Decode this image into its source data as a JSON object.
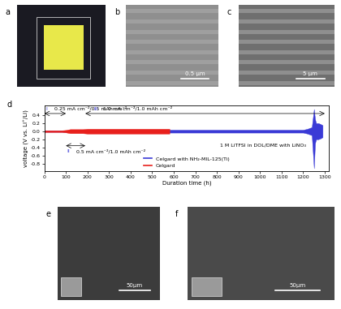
{
  "panels": [
    {
      "label": "a"
    },
    {
      "label": "b",
      "scale_bar": "0.5 μm"
    },
    {
      "label": "c",
      "scale_bar": "5 μm"
    },
    {
      "label": "e",
      "scale_bar": "50μm"
    },
    {
      "label": "f",
      "scale_bar": "50μm"
    }
  ],
  "chart_data": {
    "label": "d",
    "type": "line",
    "x_label": "Duration time (h)",
    "y_label": "voltage (V vs. Li⁺/Li)",
    "xlim": [
      0,
      1320
    ],
    "xticks": [
      0,
      100,
      200,
      300,
      400,
      500,
      600,
      700,
      800,
      900,
      1000,
      1100,
      1200,
      1300
    ],
    "ylim": [
      -1.0,
      0.65
    ],
    "yticks": [
      -0.8,
      -0.6,
      -0.4,
      -0.2,
      0.0,
      0.2,
      0.4
    ],
    "legend": "lower center",
    "note": "1 M LiTFSI in DOL/DME with LiNO₃",
    "annotations": [
      {
        "label": "I",
        "text": "0.25 mA cm⁻²/0.5 mAh cm⁻²",
        "start": 0,
        "end": 100
      },
      {
        "label": "II",
        "text": "0.5 mA cm⁻²/1.0 mAh cm⁻²",
        "start": 100,
        "end": 190
      },
      {
        "label": "III",
        "text": "1.0 mA cm⁻²/1.0 mAh cm⁻²",
        "start": 190,
        "end": 1300
      }
    ],
    "series": [
      {
        "name": "Celgard with NH₂-MIL-125(Ti)",
        "color": "#3a3ad6",
        "x": [
          0,
          40,
          80,
          120,
          160,
          200,
          240,
          280,
          320,
          360,
          400,
          440,
          480,
          520,
          560,
          600,
          640,
          680,
          720,
          760,
          800,
          840,
          880,
          920,
          960,
          1000,
          1040,
          1080,
          1120,
          1160,
          1200,
          1220,
          1240,
          1250,
          1255,
          1260,
          1270,
          1280,
          1290
        ],
        "upper": [
          0.015,
          0.015,
          0.015,
          0.025,
          0.025,
          0.035,
          0.035,
          0.035,
          0.035,
          0.035,
          0.035,
          0.035,
          0.035,
          0.035,
          0.035,
          0.035,
          0.035,
          0.035,
          0.035,
          0.035,
          0.035,
          0.035,
          0.035,
          0.035,
          0.035,
          0.035,
          0.035,
          0.035,
          0.035,
          0.035,
          0.035,
          0.06,
          0.1,
          0.55,
          0.3,
          0.2,
          0.2,
          0.18,
          0.15
        ],
        "lower": [
          -0.015,
          -0.015,
          -0.015,
          -0.025,
          -0.025,
          -0.035,
          -0.035,
          -0.035,
          -0.035,
          -0.035,
          -0.035,
          -0.035,
          -0.035,
          -0.035,
          -0.035,
          -0.035,
          -0.035,
          -0.035,
          -0.035,
          -0.035,
          -0.035,
          -0.035,
          -0.035,
          -0.035,
          -0.035,
          -0.035,
          -0.035,
          -0.035,
          -0.035,
          -0.035,
          -0.035,
          -0.06,
          -0.1,
          -0.92,
          -0.3,
          -0.2,
          -0.2,
          -0.18,
          -0.15
        ]
      },
      {
        "name": "Celgard",
        "color": "#e8201c",
        "x": [
          0,
          20,
          40,
          60,
          80,
          100,
          120,
          140,
          160,
          180,
          200,
          220,
          240,
          260,
          280,
          300,
          320,
          340,
          360,
          380,
          400,
          420,
          440,
          460,
          480,
          500,
          520,
          540,
          560,
          580
        ],
        "upper": [
          0.02,
          0.02,
          0.02,
          0.02,
          0.02,
          0.03,
          0.05,
          0.05,
          0.05,
          0.05,
          0.06,
          0.06,
          0.06,
          0.06,
          0.06,
          0.06,
          0.06,
          0.06,
          0.06,
          0.06,
          0.06,
          0.06,
          0.06,
          0.06,
          0.06,
          0.06,
          0.06,
          0.06,
          0.06,
          0.06
        ],
        "lower": [
          -0.02,
          -0.02,
          -0.02,
          -0.02,
          -0.02,
          -0.03,
          -0.05,
          -0.05,
          -0.05,
          -0.05,
          -0.06,
          -0.06,
          -0.06,
          -0.06,
          -0.06,
          -0.06,
          -0.06,
          -0.06,
          -0.06,
          -0.06,
          -0.06,
          -0.06,
          -0.06,
          -0.06,
          -0.06,
          -0.06,
          -0.06,
          -0.06,
          -0.06,
          -0.06
        ]
      }
    ]
  }
}
